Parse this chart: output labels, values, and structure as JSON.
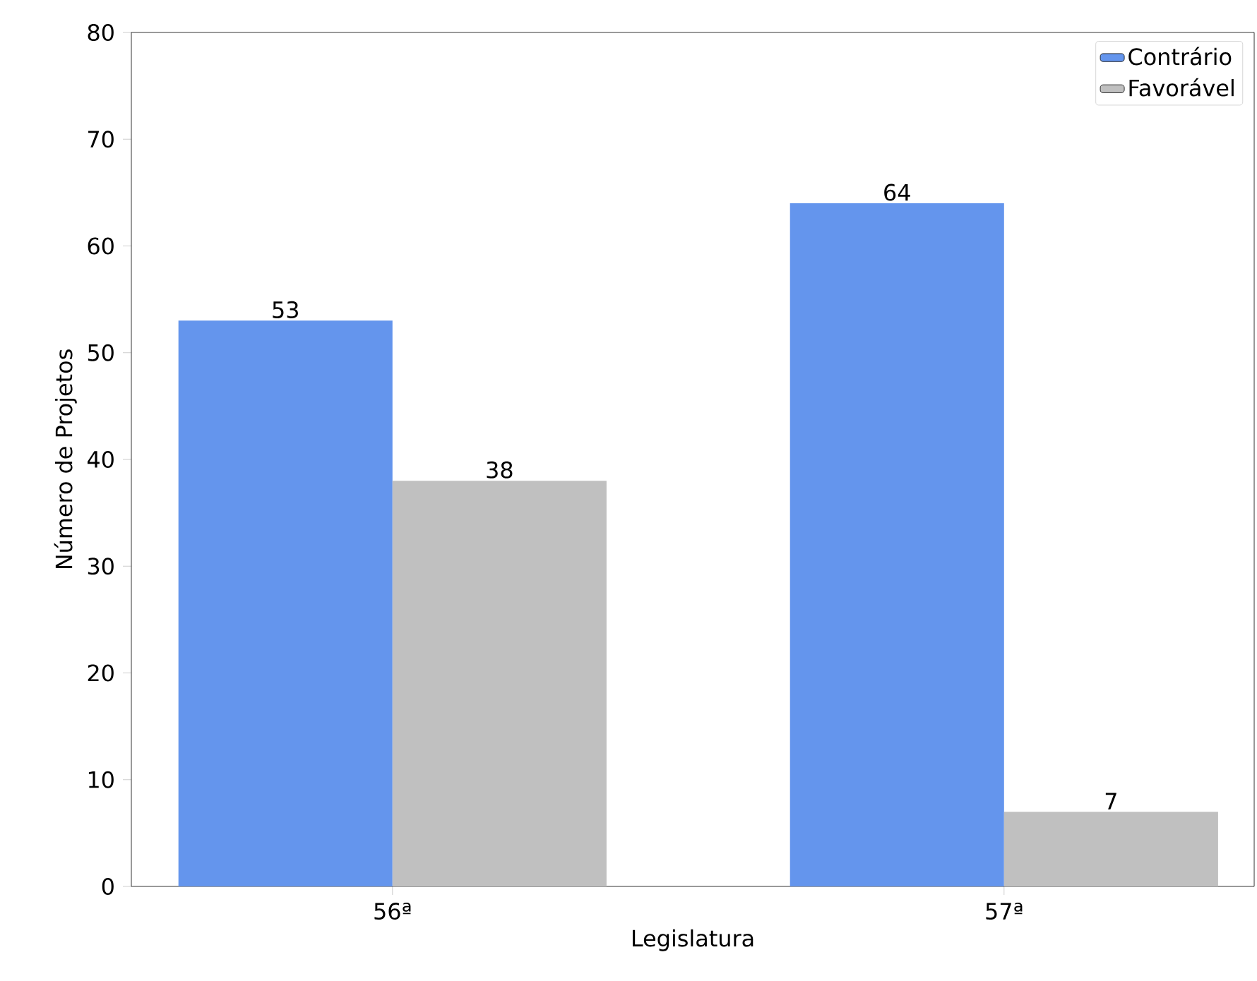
{
  "chart_data": {
    "type": "bar",
    "xlabel": "Legislatura",
    "ylabel": "Número de Projetos",
    "categories": [
      "56ª",
      "57ª"
    ],
    "series": [
      {
        "name": "Contrário",
        "color": "#6495ed",
        "values": [
          53,
          64
        ]
      },
      {
        "name": "Favorável",
        "color": "#c0c0c0",
        "values": [
          38,
          7
        ]
      }
    ],
    "ylim": [
      0,
      80
    ],
    "yticks": [
      0,
      10,
      20,
      30,
      40,
      50,
      60,
      70,
      80
    ],
    "data_labels": true,
    "legend": "top right",
    "grid": false
  }
}
